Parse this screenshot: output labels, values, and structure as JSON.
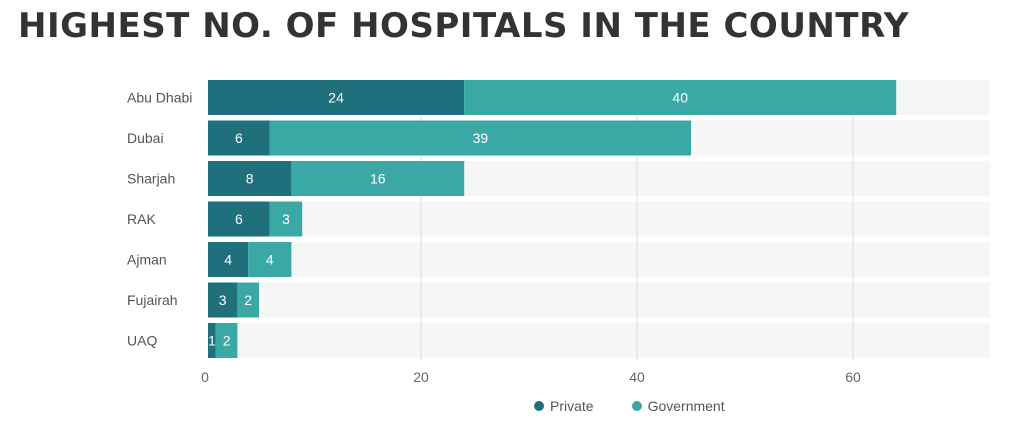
{
  "title": "HIGHEST NO. OF HOSPITALS IN THE COUNTRY",
  "colors": {
    "private": "#1f6f7d",
    "government": "#3aa9a6",
    "grid": "#dcdcdc",
    "band": "#f6f6f6",
    "axis_text": "#666666",
    "label_text": "#ffffff"
  },
  "legend": [
    {
      "name": "Private",
      "color": "#1f6f7d"
    },
    {
      "name": "Government",
      "color": "#3aa9a6"
    }
  ],
  "chart_data": {
    "type": "bar",
    "orientation": "horizontal",
    "stacked": true,
    "title": "HIGHEST NO. OF HOSPITALS IN THE COUNTRY",
    "categories": [
      "Abu Dhabi",
      "Dubai",
      "Sharjah",
      "RAK",
      "Ajman",
      "Fujairah",
      "UAQ"
    ],
    "series": [
      {
        "name": "Private",
        "values": [
          24,
          6,
          8,
          6,
          4,
          3,
          1
        ]
      },
      {
        "name": "Government",
        "values": [
          40,
          39,
          16,
          3,
          4,
          2,
          2
        ]
      }
    ],
    "xlim": [
      0,
      72
    ],
    "xticks": [
      0,
      20,
      40,
      60
    ],
    "grid": true,
    "legend_position": "bottom-right"
  }
}
